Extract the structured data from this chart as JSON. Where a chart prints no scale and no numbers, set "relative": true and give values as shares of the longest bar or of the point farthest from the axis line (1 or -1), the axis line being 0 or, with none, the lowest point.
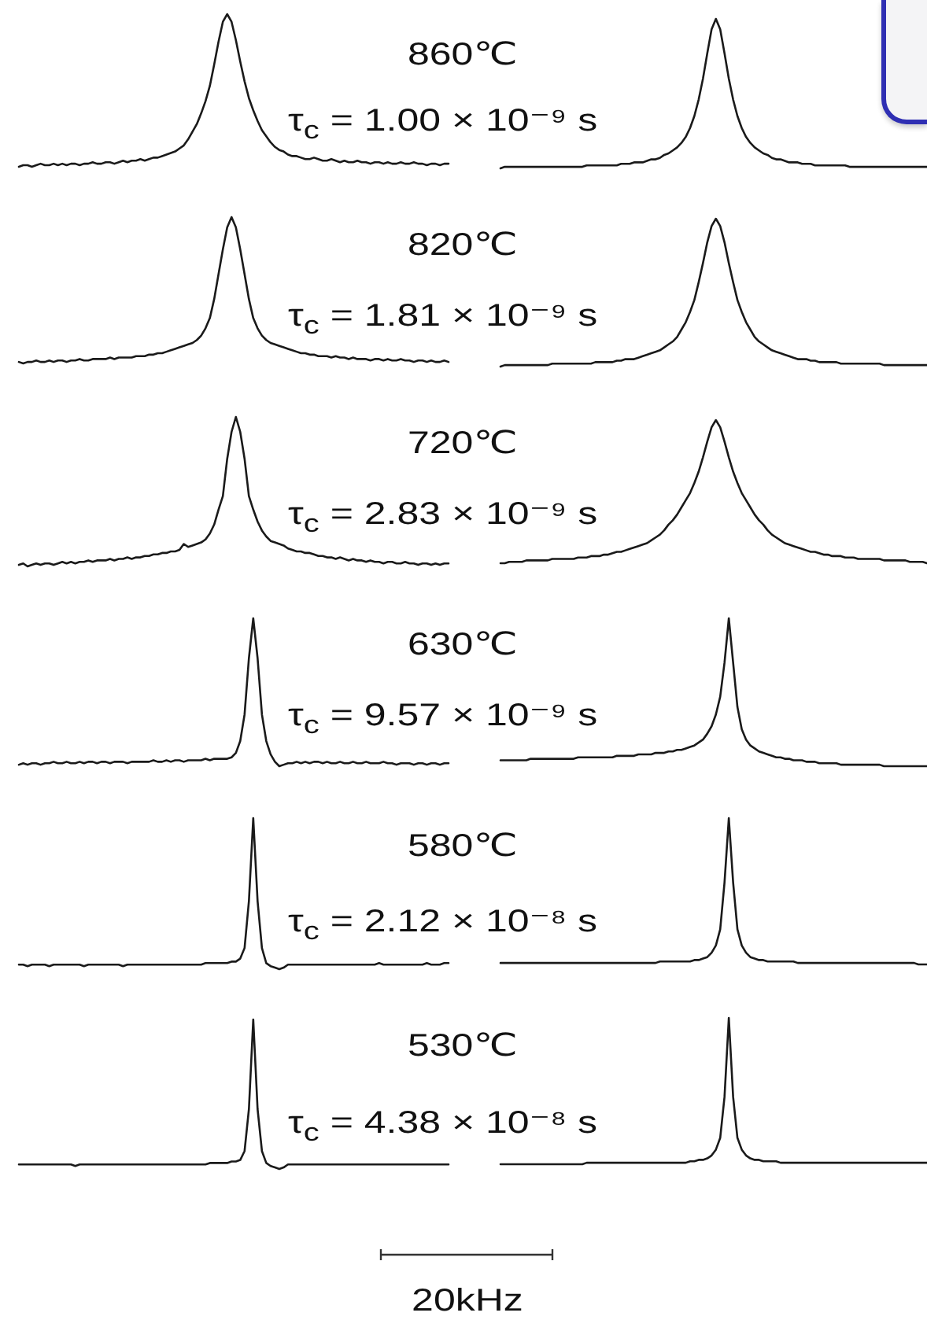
{
  "chart_data": [
    {
      "type": "line",
      "relative": true,
      "color": "#1a1a1a",
      "categories": [
        null,
        null,
        null,
        null,
        null,
        null,
        null,
        null,
        null,
        null,
        null,
        null,
        null,
        null,
        null,
        null,
        null,
        null,
        null,
        null,
        null,
        null,
        null,
        null,
        null,
        null,
        null,
        null,
        null,
        null,
        null,
        null,
        null,
        null,
        null,
        null,
        null,
        null,
        null,
        null,
        null,
        null,
        null,
        null,
        null,
        null,
        null,
        null,
        null,
        null,
        null,
        null,
        null,
        null,
        null,
        null,
        null,
        null,
        null,
        null,
        null,
        null,
        null,
        null,
        null,
        null,
        null,
        null,
        null,
        null,
        null,
        null,
        null,
        null,
        null,
        null,
        null,
        null,
        null,
        null,
        null,
        null,
        null,
        null,
        null,
        null,
        null,
        null,
        null,
        null,
        null,
        null,
        null,
        null,
        null,
        null,
        null,
        null,
        null,
        null
      ],
      "values": [
        0,
        0.01,
        0.01,
        0,
        0.01,
        0.02,
        0.01,
        0.01,
        0.02,
        0.01,
        0.02,
        0.01,
        0.02,
        0.02,
        0.01,
        0.02,
        0.02,
        0.03,
        0.02,
        0.02,
        0.03,
        0.03,
        0.02,
        0.03,
        0.04,
        0.03,
        0.04,
        0.04,
        0.05,
        0.04,
        0.05,
        0.06,
        0.06,
        0.07,
        0.08,
        0.09,
        0.1,
        0.12,
        0.14,
        0.18,
        0.23,
        0.28,
        0.35,
        0.43,
        0.53,
        0.67,
        0.82,
        0.95,
        1,
        0.95,
        0.83,
        0.69,
        0.56,
        0.45,
        0.37,
        0.3,
        0.24,
        0.2,
        0.16,
        0.13,
        0.11,
        0.1,
        0.08,
        0.07,
        0.07,
        0.06,
        0.05,
        0.05,
        0.06,
        0.05,
        0.04,
        0.04,
        0.05,
        0.04,
        0.03,
        0.04,
        0.03,
        0.03,
        0.04,
        0.03,
        0.03,
        0.02,
        0.03,
        0.03,
        0.02,
        0.03,
        0.02,
        0.02,
        0.03,
        0.02,
        0.02,
        0.03,
        0.02,
        0.02,
        0.01,
        0.02,
        0.02,
        0.01,
        0.02,
        0.02
      ]
    },
    {
      "type": "other",
      "title": "860℃",
      "subtitle": "τ$_{c}$ = 1.00 × 10⁻⁹ s"
    },
    {
      "type": "line",
      "relative": true,
      "color": "#1a1a1a",
      "categories": [
        null,
        null,
        null,
        null,
        null,
        null,
        null,
        null,
        null,
        null,
        null,
        null,
        null,
        null,
        null,
        null,
        null,
        null,
        null,
        null,
        null,
        null,
        null,
        null,
        null,
        null,
        null,
        null,
        null,
        null,
        null,
        null,
        null,
        null,
        null,
        null,
        null,
        null,
        null,
        null,
        null,
        null,
        null,
        null,
        null,
        null,
        null,
        null,
        null,
        null,
        null,
        null,
        null,
        null,
        null,
        null,
        null,
        null,
        null,
        null,
        null,
        null,
        null,
        null,
        null,
        null,
        null,
        null,
        null,
        null,
        null,
        null,
        null,
        null,
        null,
        null,
        null,
        null,
        null,
        null,
        null,
        null,
        null,
        null,
        null,
        null,
        null,
        null,
        null,
        null,
        null,
        null,
        null,
        null,
        null,
        null,
        null,
        null,
        null,
        null
      ],
      "values": [
        0,
        0.01,
        0.01,
        0.01,
        0.01,
        0.01,
        0.01,
        0.01,
        0.01,
        0.01,
        0.01,
        0.01,
        0.01,
        0.01,
        0.01,
        0.01,
        0.01,
        0.01,
        0.01,
        0.01,
        0.02,
        0.02,
        0.02,
        0.02,
        0.02,
        0.02,
        0.02,
        0.02,
        0.03,
        0.03,
        0.03,
        0.04,
        0.04,
        0.04,
        0.05,
        0.06,
        0.06,
        0.07,
        0.09,
        0.1,
        0.12,
        0.14,
        0.17,
        0.21,
        0.27,
        0.35,
        0.46,
        0.6,
        0.77,
        0.93,
        1,
        0.93,
        0.77,
        0.6,
        0.46,
        0.35,
        0.27,
        0.21,
        0.17,
        0.14,
        0.12,
        0.1,
        0.09,
        0.07,
        0.06,
        0.06,
        0.05,
        0.04,
        0.04,
        0.04,
        0.03,
        0.03,
        0.03,
        0.02,
        0.02,
        0.02,
        0.02,
        0.02,
        0.02,
        0.02,
        0.02,
        0.01,
        0.01,
        0.01,
        0.01,
        0.01,
        0.01,
        0.01,
        0.01,
        0.01,
        0.01,
        0.01,
        0.01,
        0.01,
        0.01,
        0.01,
        0.01,
        0.01,
        0.01,
        0.01
      ]
    },
    {
      "type": "line",
      "relative": true,
      "color": "#1a1a1a",
      "categories": [
        null,
        null,
        null,
        null,
        null,
        null,
        null,
        null,
        null,
        null,
        null,
        null,
        null,
        null,
        null,
        null,
        null,
        null,
        null,
        null,
        null,
        null,
        null,
        null,
        null,
        null,
        null,
        null,
        null,
        null,
        null,
        null,
        null,
        null,
        null,
        null,
        null,
        null,
        null,
        null,
        null,
        null,
        null,
        null,
        null,
        null,
        null,
        null,
        null,
        null,
        null,
        null,
        null,
        null,
        null,
        null,
        null,
        null,
        null,
        null,
        null,
        null,
        null,
        null,
        null,
        null,
        null,
        null,
        null,
        null,
        null,
        null,
        null,
        null,
        null,
        null,
        null,
        null,
        null,
        null,
        null,
        null,
        null,
        null,
        null,
        null,
        null,
        null,
        null,
        null,
        null,
        null,
        null,
        null,
        null,
        null,
        null,
        null,
        null,
        null
      ],
      "values": [
        0.01,
        0,
        0.01,
        0.01,
        0.02,
        0.01,
        0.01,
        0.02,
        0.01,
        0.02,
        0.02,
        0.01,
        0.02,
        0.02,
        0.03,
        0.02,
        0.02,
        0.03,
        0.03,
        0.03,
        0.03,
        0.04,
        0.03,
        0.04,
        0.04,
        0.04,
        0.04,
        0.05,
        0.05,
        0.05,
        0.06,
        0.06,
        0.07,
        0.07,
        0.08,
        0.09,
        0.1,
        0.11,
        0.12,
        0.13,
        0.14,
        0.16,
        0.19,
        0.24,
        0.31,
        0.44,
        0.61,
        0.78,
        0.93,
        1,
        0.93,
        0.78,
        0.61,
        0.44,
        0.31,
        0.24,
        0.19,
        0.16,
        0.14,
        0.13,
        0.12,
        0.11,
        0.1,
        0.09,
        0.08,
        0.07,
        0.07,
        0.06,
        0.06,
        0.05,
        0.05,
        0.05,
        0.04,
        0.05,
        0.04,
        0.04,
        0.03,
        0.04,
        0.03,
        0.03,
        0.03,
        0.02,
        0.03,
        0.03,
        0.02,
        0.03,
        0.02,
        0.02,
        0.03,
        0.02,
        0.02,
        0.01,
        0.02,
        0.02,
        0.01,
        0.02,
        0.01,
        0.01,
        0.02,
        0.01
      ]
    },
    {
      "type": "other",
      "title": "820℃",
      "subtitle": "τ$_{c}$ = 1.81 × 10⁻⁹ s"
    },
    {
      "type": "line",
      "relative": true,
      "color": "#1a1a1a",
      "categories": [
        null,
        null,
        null,
        null,
        null,
        null,
        null,
        null,
        null,
        null,
        null,
        null,
        null,
        null,
        null,
        null,
        null,
        null,
        null,
        null,
        null,
        null,
        null,
        null,
        null,
        null,
        null,
        null,
        null,
        null,
        null,
        null,
        null,
        null,
        null,
        null,
        null,
        null,
        null,
        null,
        null,
        null,
        null,
        null,
        null,
        null,
        null,
        null,
        null,
        null,
        null,
        null,
        null,
        null,
        null,
        null,
        null,
        null,
        null,
        null,
        null,
        null,
        null,
        null,
        null,
        null,
        null,
        null,
        null,
        null,
        null,
        null,
        null,
        null,
        null,
        null,
        null,
        null,
        null,
        null,
        null,
        null,
        null,
        null,
        null,
        null,
        null,
        null,
        null,
        null,
        null,
        null,
        null,
        null,
        null,
        null,
        null,
        null,
        null,
        null
      ],
      "values": [
        0,
        0.01,
        0.01,
        0.01,
        0.01,
        0.01,
        0.01,
        0.01,
        0.01,
        0.01,
        0.01,
        0.01,
        0.02,
        0.02,
        0.02,
        0.02,
        0.02,
        0.02,
        0.02,
        0.02,
        0.02,
        0.02,
        0.03,
        0.03,
        0.03,
        0.03,
        0.03,
        0.04,
        0.04,
        0.05,
        0.05,
        0.05,
        0.06,
        0.07,
        0.08,
        0.09,
        0.1,
        0.11,
        0.13,
        0.15,
        0.17,
        0.2,
        0.25,
        0.3,
        0.37,
        0.45,
        0.57,
        0.7,
        0.84,
        0.95,
        1,
        0.95,
        0.84,
        0.7,
        0.57,
        0.45,
        0.37,
        0.3,
        0.25,
        0.2,
        0.17,
        0.15,
        0.13,
        0.11,
        0.1,
        0.09,
        0.08,
        0.07,
        0.06,
        0.05,
        0.05,
        0.05,
        0.04,
        0.04,
        0.03,
        0.03,
        0.03,
        0.03,
        0.03,
        0.02,
        0.02,
        0.02,
        0.02,
        0.02,
        0.02,
        0.02,
        0.02,
        0.02,
        0.02,
        0.01,
        0.01,
        0.01,
        0.01,
        0.01,
        0.01,
        0.01,
        0.01,
        0.01,
        0.01,
        0.01
      ]
    },
    {
      "type": "line",
      "relative": true,
      "color": "#1a1a1a",
      "categories": [
        null,
        null,
        null,
        null,
        null,
        null,
        null,
        null,
        null,
        null,
        null,
        null,
        null,
        null,
        null,
        null,
        null,
        null,
        null,
        null,
        null,
        null,
        null,
        null,
        null,
        null,
        null,
        null,
        null,
        null,
        null,
        null,
        null,
        null,
        null,
        null,
        null,
        null,
        null,
        null,
        null,
        null,
        null,
        null,
        null,
        null,
        null,
        null,
        null,
        null,
        null,
        null,
        null,
        null,
        null,
        null,
        null,
        null,
        null,
        null,
        null,
        null,
        null,
        null,
        null,
        null,
        null,
        null,
        null,
        null,
        null,
        null,
        null,
        null,
        null,
        null,
        null,
        null,
        null,
        null,
        null,
        null,
        null,
        null,
        null,
        null,
        null,
        null,
        null,
        null,
        null,
        null,
        null,
        null,
        null,
        null,
        null,
        null,
        null,
        null
      ],
      "values": [
        0.01,
        0.02,
        0,
        0.01,
        0.02,
        0.01,
        0.02,
        0.02,
        0.01,
        0.02,
        0.03,
        0.02,
        0.03,
        0.02,
        0.03,
        0.03,
        0.04,
        0.03,
        0.04,
        0.04,
        0.04,
        0.05,
        0.04,
        0.05,
        0.05,
        0.06,
        0.05,
        0.06,
        0.06,
        0.07,
        0.07,
        0.08,
        0.08,
        0.09,
        0.09,
        0.1,
        0.1,
        0.11,
        0.15,
        0.13,
        0.14,
        0.15,
        0.16,
        0.18,
        0.22,
        0.28,
        0.38,
        0.47,
        0.72,
        0.9,
        1,
        0.9,
        0.72,
        0.47,
        0.38,
        0.3,
        0.24,
        0.2,
        0.17,
        0.16,
        0.15,
        0.14,
        0.12,
        0.11,
        0.1,
        0.1,
        0.09,
        0.09,
        0.08,
        0.07,
        0.07,
        0.06,
        0.06,
        0.05,
        0.06,
        0.05,
        0.04,
        0.05,
        0.04,
        0.04,
        0.03,
        0.04,
        0.03,
        0.03,
        0.02,
        0.03,
        0.03,
        0.02,
        0.02,
        0.03,
        0.02,
        0.02,
        0.01,
        0.02,
        0.02,
        0.01,
        0.02,
        0.01,
        0.02,
        0.02
      ]
    },
    {
      "type": "other",
      "title": "720℃",
      "subtitle": "τ$_{c}$ = 2.83 × 10⁻⁹ s"
    },
    {
      "type": "line",
      "relative": true,
      "color": "#1a1a1a",
      "categories": [
        null,
        null,
        null,
        null,
        null,
        null,
        null,
        null,
        null,
        null,
        null,
        null,
        null,
        null,
        null,
        null,
        null,
        null,
        null,
        null,
        null,
        null,
        null,
        null,
        null,
        null,
        null,
        null,
        null,
        null,
        null,
        null,
        null,
        null,
        null,
        null,
        null,
        null,
        null,
        null,
        null,
        null,
        null,
        null,
        null,
        null,
        null,
        null,
        null,
        null,
        null,
        null,
        null,
        null,
        null,
        null,
        null,
        null,
        null,
        null,
        null,
        null,
        null,
        null,
        null,
        null,
        null,
        null,
        null,
        null,
        null,
        null,
        null,
        null,
        null,
        null,
        null,
        null,
        null,
        null,
        null,
        null,
        null,
        null,
        null,
        null,
        null,
        null,
        null,
        null,
        null,
        null,
        null,
        null,
        null,
        null,
        null,
        null,
        null,
        null
      ],
      "values": [
        0,
        0,
        0.01,
        0.01,
        0.01,
        0.01,
        0.02,
        0.02,
        0.02,
        0.02,
        0.02,
        0.02,
        0.03,
        0.03,
        0.03,
        0.03,
        0.03,
        0.03,
        0.04,
        0.04,
        0.04,
        0.05,
        0.05,
        0.05,
        0.06,
        0.06,
        0.07,
        0.08,
        0.08,
        0.09,
        0.1,
        0.11,
        0.12,
        0.13,
        0.14,
        0.16,
        0.18,
        0.2,
        0.23,
        0.27,
        0.3,
        0.34,
        0.39,
        0.44,
        0.49,
        0.56,
        0.64,
        0.74,
        0.85,
        0.95,
        1,
        0.95,
        0.85,
        0.74,
        0.64,
        0.56,
        0.49,
        0.44,
        0.39,
        0.34,
        0.3,
        0.27,
        0.23,
        0.2,
        0.18,
        0.16,
        0.14,
        0.13,
        0.12,
        0.11,
        0.1,
        0.09,
        0.08,
        0.08,
        0.07,
        0.06,
        0.06,
        0.05,
        0.05,
        0.05,
        0.04,
        0.04,
        0.04,
        0.03,
        0.03,
        0.03,
        0.03,
        0.03,
        0.03,
        0.02,
        0.02,
        0.02,
        0.02,
        0.02,
        0.02,
        0.01,
        0.01,
        0.01,
        0.01,
        0
      ]
    },
    {
      "type": "line",
      "relative": true,
      "color": "#1a1a1a",
      "categories": [
        null,
        null,
        null,
        null,
        null,
        null,
        null,
        null,
        null,
        null,
        null,
        null,
        null,
        null,
        null,
        null,
        null,
        null,
        null,
        null,
        null,
        null,
        null,
        null,
        null,
        null,
        null,
        null,
        null,
        null,
        null,
        null,
        null,
        null,
        null,
        null,
        null,
        null,
        null,
        null,
        null,
        null,
        null,
        null,
        null,
        null,
        null,
        null,
        null,
        null,
        null,
        null,
        null,
        null,
        null,
        null,
        null,
        null,
        null,
        null,
        null,
        null,
        null,
        null,
        null,
        null,
        null,
        null,
        null,
        null,
        null,
        null,
        null,
        null,
        null,
        null,
        null,
        null,
        null,
        null,
        null,
        null,
        null,
        null,
        null,
        null,
        null,
        null,
        null,
        null,
        null,
        null,
        null,
        null,
        null,
        null,
        null,
        null,
        null,
        null
      ],
      "values": [
        0.01,
        0.02,
        0.01,
        0.02,
        0.02,
        0.01,
        0.02,
        0.02,
        0.03,
        0.02,
        0.02,
        0.03,
        0.02,
        0.02,
        0.03,
        0.02,
        0.03,
        0.03,
        0.02,
        0.03,
        0.03,
        0.02,
        0.03,
        0.03,
        0.03,
        0.02,
        0.03,
        0.03,
        0.03,
        0.03,
        0.03,
        0.04,
        0.03,
        0.03,
        0.04,
        0.03,
        0.04,
        0.04,
        0.03,
        0.04,
        0.04,
        0.04,
        0.04,
        0.05,
        0.04,
        0.05,
        0.05,
        0.05,
        0.05,
        0.06,
        0.09,
        0.17,
        0.35,
        0.73,
        1,
        0.73,
        0.35,
        0.17,
        0.08,
        0.03,
        0,
        0.01,
        0.02,
        0.02,
        0.03,
        0.02,
        0.03,
        0.02,
        0.03,
        0.03,
        0.02,
        0.03,
        0.02,
        0.02,
        0.03,
        0.02,
        0.02,
        0.03,
        0.02,
        0.02,
        0.03,
        0.02,
        0.02,
        0.02,
        0.03,
        0.02,
        0.02,
        0.01,
        0.02,
        0.02,
        0.02,
        0.01,
        0.02,
        0.02,
        0.01,
        0.02,
        0.02,
        0.01,
        0.02,
        0.02
      ]
    },
    {
      "type": "other",
      "title": "630℃",
      "subtitle": "τ$_{c}$ = 9.57 × 10⁻⁹ s"
    },
    {
      "type": "line",
      "relative": true,
      "color": "#1a1a1a",
      "categories": [
        null,
        null,
        null,
        null,
        null,
        null,
        null,
        null,
        null,
        null,
        null,
        null,
        null,
        null,
        null,
        null,
        null,
        null,
        null,
        null,
        null,
        null,
        null,
        null,
        null,
        null,
        null,
        null,
        null,
        null,
        null,
        null,
        null,
        null,
        null,
        null,
        null,
        null,
        null,
        null,
        null,
        null,
        null,
        null,
        null,
        null,
        null,
        null,
        null,
        null,
        null,
        null,
        null,
        null,
        null,
        null,
        null,
        null,
        null,
        null,
        null,
        null,
        null,
        null,
        null,
        null,
        null,
        null,
        null,
        null,
        null,
        null,
        null,
        null,
        null,
        null,
        null,
        null,
        null,
        null,
        null,
        null,
        null,
        null,
        null,
        null,
        null,
        null,
        null,
        null,
        null,
        null,
        null,
        null,
        null,
        null,
        null,
        null,
        null,
        null
      ],
      "values": [
        0.04,
        0.04,
        0.04,
        0.04,
        0.04,
        0.04,
        0.04,
        0.05,
        0.05,
        0.05,
        0.05,
        0.05,
        0.05,
        0.05,
        0.05,
        0.05,
        0.05,
        0.05,
        0.06,
        0.06,
        0.06,
        0.06,
        0.06,
        0.06,
        0.06,
        0.06,
        0.06,
        0.07,
        0.07,
        0.07,
        0.07,
        0.07,
        0.08,
        0.08,
        0.08,
        0.08,
        0.09,
        0.09,
        0.09,
        0.1,
        0.1,
        0.11,
        0.11,
        0.12,
        0.13,
        0.14,
        0.16,
        0.18,
        0.22,
        0.27,
        0.35,
        0.47,
        0.7,
        1,
        0.7,
        0.4,
        0.25,
        0.18,
        0.14,
        0.12,
        0.1,
        0.09,
        0.08,
        0.07,
        0.06,
        0.06,
        0.05,
        0.05,
        0.04,
        0.04,
        0.04,
        0.03,
        0.03,
        0.03,
        0.02,
        0.02,
        0.02,
        0.02,
        0.02,
        0.01,
        0.01,
        0.01,
        0.01,
        0.01,
        0.01,
        0.01,
        0.01,
        0.01,
        0.01,
        0,
        0,
        0,
        0,
        0,
        0,
        0,
        0,
        0,
        0,
        0
      ]
    },
    {
      "type": "line",
      "relative": true,
      "color": "#1a1a1a",
      "categories": [
        null,
        null,
        null,
        null,
        null,
        null,
        null,
        null,
        null,
        null,
        null,
        null,
        null,
        null,
        null,
        null,
        null,
        null,
        null,
        null,
        null,
        null,
        null,
        null,
        null,
        null,
        null,
        null,
        null,
        null,
        null,
        null,
        null,
        null,
        null,
        null,
        null,
        null,
        null,
        null,
        null,
        null,
        null,
        null,
        null,
        null,
        null,
        null,
        null,
        null,
        null,
        null,
        null,
        null,
        null,
        null,
        null,
        null,
        null,
        null,
        null,
        null,
        null,
        null,
        null,
        null,
        null,
        null,
        null,
        null,
        null,
        null,
        null,
        null,
        null,
        null,
        null,
        null,
        null,
        null,
        null,
        null,
        null,
        null,
        null,
        null,
        null,
        null,
        null,
        null,
        null,
        null,
        null,
        null,
        null,
        null,
        null,
        null,
        null,
        null
      ],
      "values": [
        0.03,
        0.03,
        0.02,
        0.03,
        0.03,
        0.03,
        0.03,
        0.02,
        0.03,
        0.03,
        0.03,
        0.03,
        0.03,
        0.03,
        0.03,
        0.02,
        0.03,
        0.03,
        0.03,
        0.03,
        0.03,
        0.03,
        0.03,
        0.03,
        0.02,
        0.03,
        0.03,
        0.03,
        0.03,
        0.03,
        0.03,
        0.03,
        0.03,
        0.03,
        0.03,
        0.03,
        0.03,
        0.03,
        0.03,
        0.03,
        0.03,
        0.03,
        0.03,
        0.04,
        0.04,
        0.04,
        0.04,
        0.04,
        0.04,
        0.05,
        0.05,
        0.07,
        0.14,
        0.45,
        1,
        0.45,
        0.14,
        0.04,
        0.02,
        0.01,
        0,
        0.01,
        0.03,
        0.03,
        0.03,
        0.03,
        0.03,
        0.03,
        0.03,
        0.03,
        0.03,
        0.03,
        0.03,
        0.03,
        0.03,
        0.03,
        0.03,
        0.03,
        0.03,
        0.03,
        0.03,
        0.03,
        0.03,
        0.04,
        0.03,
        0.03,
        0.03,
        0.03,
        0.03,
        0.03,
        0.03,
        0.03,
        0.03,
        0.03,
        0.04,
        0.03,
        0.03,
        0.03,
        0.04,
        0.04
      ]
    },
    {
      "type": "other",
      "title": "580℃",
      "subtitle": "τ$_{c}$ = 2.12 × 10⁻⁸ s"
    },
    {
      "type": "line",
      "relative": true,
      "color": "#1a1a1a",
      "categories": [
        null,
        null,
        null,
        null,
        null,
        null,
        null,
        null,
        null,
        null,
        null,
        null,
        null,
        null,
        null,
        null,
        null,
        null,
        null,
        null,
        null,
        null,
        null,
        null,
        null,
        null,
        null,
        null,
        null,
        null,
        null,
        null,
        null,
        null,
        null,
        null,
        null,
        null,
        null,
        null,
        null,
        null,
        null,
        null,
        null,
        null,
        null,
        null,
        null,
        null,
        null,
        null,
        null,
        null,
        null,
        null,
        null,
        null,
        null,
        null,
        null,
        null,
        null,
        null,
        null,
        null,
        null,
        null,
        null,
        null,
        null,
        null,
        null,
        null,
        null,
        null,
        null,
        null,
        null,
        null,
        null,
        null,
        null,
        null,
        null,
        null,
        null,
        null,
        null,
        null,
        null,
        null,
        null,
        null,
        null,
        null,
        null,
        null,
        null,
        null
      ],
      "values": [
        0.01,
        0.01,
        0.01,
        0.01,
        0.01,
        0.01,
        0.01,
        0.01,
        0.01,
        0.01,
        0.01,
        0.01,
        0.01,
        0.01,
        0.01,
        0.01,
        0.01,
        0.01,
        0.01,
        0.01,
        0.01,
        0.01,
        0.01,
        0.01,
        0.01,
        0.01,
        0.01,
        0.01,
        0.01,
        0.01,
        0.01,
        0.01,
        0.01,
        0.01,
        0.01,
        0.01,
        0.01,
        0.02,
        0.02,
        0.02,
        0.02,
        0.02,
        0.02,
        0.02,
        0.02,
        0.03,
        0.03,
        0.04,
        0.05,
        0.08,
        0.13,
        0.24,
        0.56,
        1,
        0.56,
        0.24,
        0.13,
        0.08,
        0.05,
        0.04,
        0.03,
        0.03,
        0.02,
        0.02,
        0.02,
        0.02,
        0.02,
        0.02,
        0.02,
        0.01,
        0.01,
        0.01,
        0.01,
        0.01,
        0.01,
        0.01,
        0.01,
        0.01,
        0.01,
        0.01,
        0.01,
        0.01,
        0.01,
        0.01,
        0.01,
        0.01,
        0.01,
        0.01,
        0.01,
        0.01,
        0.01,
        0.01,
        0.01,
        0.01,
        0.01,
        0.01,
        0.01,
        0,
        0,
        0
      ]
    },
    {
      "type": "line",
      "relative": true,
      "color": "#1a1a1a",
      "categories": [
        null,
        null,
        null,
        null,
        null,
        null,
        null,
        null,
        null,
        null,
        null,
        null,
        null,
        null,
        null,
        null,
        null,
        null,
        null,
        null,
        null,
        null,
        null,
        null,
        null,
        null,
        null,
        null,
        null,
        null,
        null,
        null,
        null,
        null,
        null,
        null,
        null,
        null,
        null,
        null,
        null,
        null,
        null,
        null,
        null,
        null,
        null,
        null,
        null,
        null,
        null,
        null,
        null,
        null,
        null,
        null,
        null,
        null,
        null,
        null,
        null,
        null,
        null,
        null,
        null,
        null,
        null,
        null,
        null,
        null,
        null,
        null,
        null,
        null,
        null,
        null,
        null,
        null,
        null,
        null,
        null,
        null,
        null,
        null,
        null,
        null,
        null,
        null,
        null,
        null,
        null,
        null,
        null,
        null,
        null,
        null,
        null,
        null,
        null,
        null
      ],
      "values": [
        0.03,
        0.03,
        0.03,
        0.03,
        0.03,
        0.03,
        0.03,
        0.03,
        0.03,
        0.03,
        0.03,
        0.03,
        0.03,
        0.02,
        0.03,
        0.03,
        0.03,
        0.03,
        0.03,
        0.03,
        0.03,
        0.03,
        0.03,
        0.03,
        0.03,
        0.03,
        0.03,
        0.03,
        0.03,
        0.03,
        0.03,
        0.03,
        0.03,
        0.03,
        0.03,
        0.03,
        0.03,
        0.03,
        0.03,
        0.03,
        0.03,
        0.03,
        0.03,
        0.03,
        0.04,
        0.04,
        0.04,
        0.04,
        0.04,
        0.05,
        0.05,
        0.06,
        0.12,
        0.4,
        1,
        0.4,
        0.12,
        0.04,
        0.02,
        0.01,
        0,
        0.01,
        0.03,
        0.03,
        0.03,
        0.03,
        0.03,
        0.03,
        0.03,
        0.03,
        0.03,
        0.03,
        0.03,
        0.03,
        0.03,
        0.03,
        0.03,
        0.03,
        0.03,
        0.03,
        0.03,
        0.03,
        0.03,
        0.03,
        0.03,
        0.03,
        0.03,
        0.03,
        0.03,
        0.03,
        0.03,
        0.03,
        0.03,
        0.03,
        0.03,
        0.03,
        0.03,
        0.03,
        0.03,
        0.03
      ]
    },
    {
      "type": "other",
      "title": "530℃",
      "subtitle": "τ$_{c}$ = 4.38 × 10⁻⁸ s"
    },
    {
      "type": "line",
      "relative": true,
      "color": "#1a1a1a",
      "categories": [
        null,
        null,
        null,
        null,
        null,
        null,
        null,
        null,
        null,
        null,
        null,
        null,
        null,
        null,
        null,
        null,
        null,
        null,
        null,
        null,
        null,
        null,
        null,
        null,
        null,
        null,
        null,
        null,
        null,
        null,
        null,
        null,
        null,
        null,
        null,
        null,
        null,
        null,
        null,
        null,
        null,
        null,
        null,
        null,
        null,
        null,
        null,
        null,
        null,
        null,
        null,
        null,
        null,
        null,
        null,
        null,
        null,
        null,
        null,
        null,
        null,
        null,
        null,
        null,
        null,
        null,
        null,
        null,
        null,
        null,
        null,
        null,
        null,
        null,
        null,
        null,
        null,
        null,
        null,
        null,
        null,
        null,
        null,
        null,
        null,
        null,
        null,
        null,
        null,
        null,
        null,
        null,
        null,
        null,
        null,
        null,
        null,
        null,
        null,
        null
      ],
      "values": [
        0,
        0,
        0,
        0,
        0,
        0,
        0,
        0,
        0,
        0,
        0,
        0,
        0,
        0,
        0,
        0,
        0,
        0,
        0,
        0,
        0.01,
        0.01,
        0.01,
        0.01,
        0.01,
        0.01,
        0.01,
        0.01,
        0.01,
        0.01,
        0.01,
        0.01,
        0.01,
        0.01,
        0.01,
        0.01,
        0.01,
        0.01,
        0.01,
        0.01,
        0.01,
        0.01,
        0.01,
        0.01,
        0.02,
        0.02,
        0.03,
        0.03,
        0.04,
        0.06,
        0.1,
        0.18,
        0.46,
        1,
        0.46,
        0.18,
        0.1,
        0.06,
        0.04,
        0.03,
        0.03,
        0.02,
        0.02,
        0.02,
        0.02,
        0.01,
        0.01,
        0.01,
        0.01,
        0.01,
        0.01,
        0.01,
        0.01,
        0.01,
        0.01,
        0.01,
        0.01,
        0.01,
        0.01,
        0.01,
        0.01,
        0.01,
        0.01,
        0.01,
        0.01,
        0.01,
        0.01,
        0.01,
        0.01,
        0.01,
        0.01,
        0.01,
        0.01,
        0.01,
        0.01,
        0.01,
        0.01,
        0.01,
        0.01,
        0.01
      ]
    },
    {
      "type": "other",
      "annotations": [
        "20kHz"
      ]
    }
  ]
}
